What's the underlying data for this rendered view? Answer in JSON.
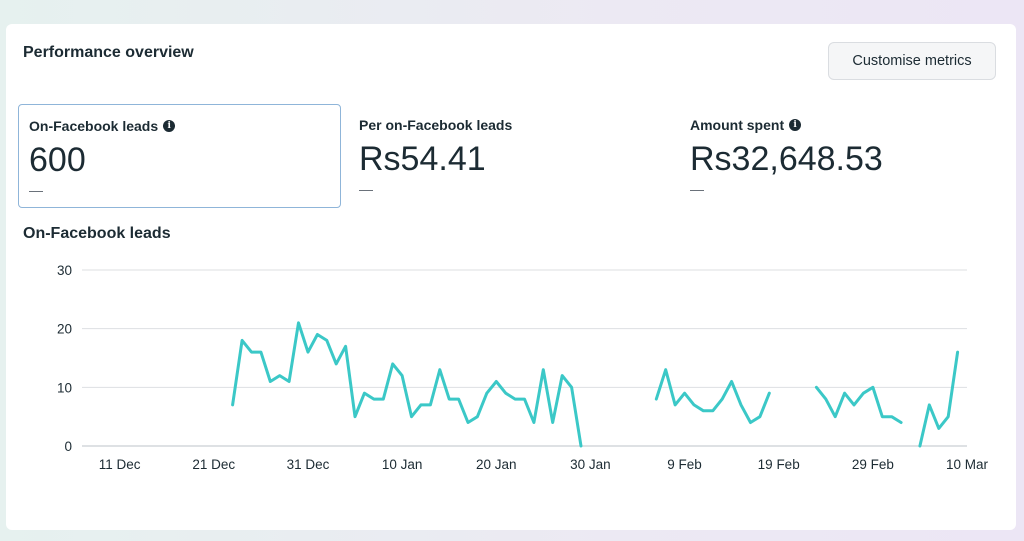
{
  "card": {
    "title": "Performance overview",
    "customise_label": "Customise metrics"
  },
  "metrics": [
    {
      "label": "On-Facebook leads",
      "value": "600",
      "change": "—",
      "has_info": true,
      "selected": true
    },
    {
      "label": "Per on-Facebook leads",
      "value": "Rs54.41",
      "change": "—",
      "has_info": false,
      "selected": false
    },
    {
      "label": "Amount spent",
      "value": "Rs32,648.53",
      "change": "—",
      "has_info": true,
      "selected": false
    }
  ],
  "colors": {
    "line": "#3bc8c7",
    "grid": "#dddfe2",
    "selected_border": "#8fb5d9"
  },
  "chart_data": {
    "type": "line",
    "title": "On-Facebook leads",
    "xlabel": "",
    "ylabel": "",
    "ylim": [
      0,
      30
    ],
    "yticks": [
      0,
      10,
      20,
      30
    ],
    "x_range": [
      "2023-12-07",
      "2024-03-10"
    ],
    "xtick_labels": [
      {
        "date": "2023-12-11",
        "label": "11 Dec"
      },
      {
        "date": "2023-12-21",
        "label": "21 Dec"
      },
      {
        "date": "2023-12-31",
        "label": "31 Dec"
      },
      {
        "date": "2024-01-10",
        "label": "10 Jan"
      },
      {
        "date": "2024-01-20",
        "label": "20 Jan"
      },
      {
        "date": "2024-01-30",
        "label": "30 Jan"
      },
      {
        "date": "2024-02-09",
        "label": "9 Feb"
      },
      {
        "date": "2024-02-19",
        "label": "19 Feb"
      },
      {
        "date": "2024-02-29",
        "label": "29 Feb"
      },
      {
        "date": "2024-03-10",
        "label": "10 Mar"
      }
    ],
    "grid": true,
    "legend": "none",
    "series": [
      {
        "segments": [
          {
            "x": [
              "2023-12-23",
              "2023-12-24",
              "2023-12-25",
              "2023-12-26",
              "2023-12-27",
              "2023-12-28",
              "2023-12-29",
              "2023-12-30",
              "2023-12-31",
              "2024-01-01",
              "2024-01-02",
              "2024-01-03",
              "2024-01-04",
              "2024-01-05",
              "2024-01-06",
              "2024-01-07",
              "2024-01-08",
              "2024-01-09",
              "2024-01-10",
              "2024-01-11",
              "2024-01-12",
              "2024-01-13",
              "2024-01-14",
              "2024-01-15",
              "2024-01-16",
              "2024-01-17",
              "2024-01-18",
              "2024-01-19",
              "2024-01-20",
              "2024-01-21",
              "2024-01-22",
              "2024-01-23",
              "2024-01-24",
              "2024-01-25",
              "2024-01-26",
              "2024-01-27",
              "2024-01-28",
              "2024-01-29",
              "2024-01-30"
            ],
            "y": [
              7,
              18,
              16,
              16,
              11,
              12,
              11,
              21,
              16,
              19,
              18,
              14,
              17,
              5,
              9,
              8,
              8,
              14,
              12,
              5,
              7,
              7,
              13,
              8,
              8,
              4,
              5,
              9,
              11,
              9,
              8,
              8,
              4,
              13,
              4,
              12,
              10,
              0,
              null
            ]
          },
          {
            "x": [
              "2024-02-06",
              "2024-02-07",
              "2024-02-08",
              "2024-02-09",
              "2024-02-10",
              "2024-02-11",
              "2024-02-12",
              "2024-02-13",
              "2024-02-14",
              "2024-02-15",
              "2024-02-16",
              "2024-02-17",
              "2024-02-18"
            ],
            "y": [
              8,
              13,
              7,
              9,
              7,
              6,
              6,
              8,
              11,
              7,
              4,
              5,
              9
            ]
          },
          {
            "x": [
              "2024-02-23",
              "2024-02-24",
              "2024-02-25",
              "2024-02-26",
              "2024-02-27",
              "2024-02-28",
              "2024-02-29",
              "2024-03-01",
              "2024-03-02",
              "2024-03-03"
            ],
            "y": [
              10,
              8,
              5,
              9,
              7,
              9,
              10,
              5,
              5,
              4
            ]
          },
          {
            "x": [
              "2024-03-05",
              "2024-03-06",
              "2024-03-07",
              "2024-03-08",
              "2024-03-09",
              "2024-03-10"
            ],
            "y": [
              0,
              7,
              3,
              5,
              16,
              null
            ]
          }
        ]
      }
    ]
  }
}
